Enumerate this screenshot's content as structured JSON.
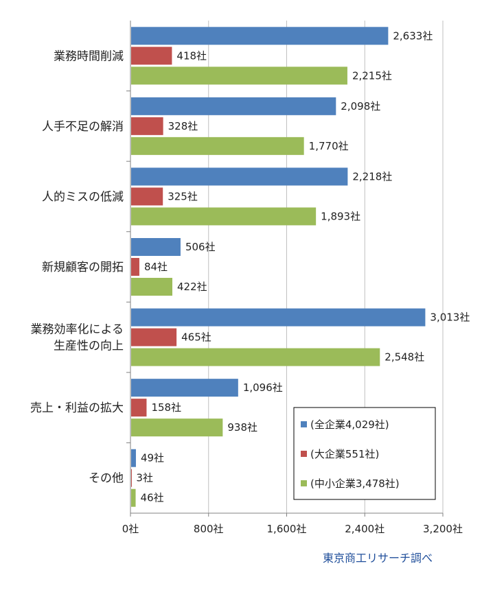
{
  "chart_data": {
    "type": "bar",
    "orientation": "horizontal",
    "categories": [
      "業務時間削減",
      "人手不足の解消",
      "人的ミスの低減",
      "新規顧客の開拓",
      "業務効率化による\n生産性の向上",
      "売上・利益の拡大",
      "その他"
    ],
    "series": [
      {
        "name": "(全企業4,029社)",
        "color": "#4f81bd",
        "values": [
          2633,
          2098,
          2218,
          506,
          3013,
          1096,
          49
        ],
        "labels": [
          "2,633社",
          "2,098社",
          "2,218社",
          "506社",
          "3,013社",
          "1,096社",
          "49社"
        ]
      },
      {
        "name": "(大企業551社)",
        "color": "#c0504d",
        "values": [
          418,
          328,
          325,
          84,
          465,
          158,
          3
        ],
        "labels": [
          "418社",
          "328社",
          "325社",
          "84社",
          "465社",
          "158社",
          "3社"
        ]
      },
      {
        "name": "(中小企業3,478社)",
        "color": "#9bbb59",
        "values": [
          2215,
          1770,
          1893,
          422,
          2548,
          938,
          46
        ],
        "labels": [
          "2,215社",
          "1,770社",
          "1,893社",
          "422社",
          "2,548社",
          "938社",
          "46社"
        ]
      }
    ],
    "xlim": [
      0,
      3200
    ],
    "xticks": [
      0,
      800,
      1600,
      2400,
      3200
    ],
    "xtick_labels": [
      "0社",
      "800社",
      "1,600社",
      "2,400社",
      "3,200社"
    ],
    "legend_position": "bottom-right",
    "grid": "vertical",
    "source": "東京商工リサーチ調べ"
  }
}
